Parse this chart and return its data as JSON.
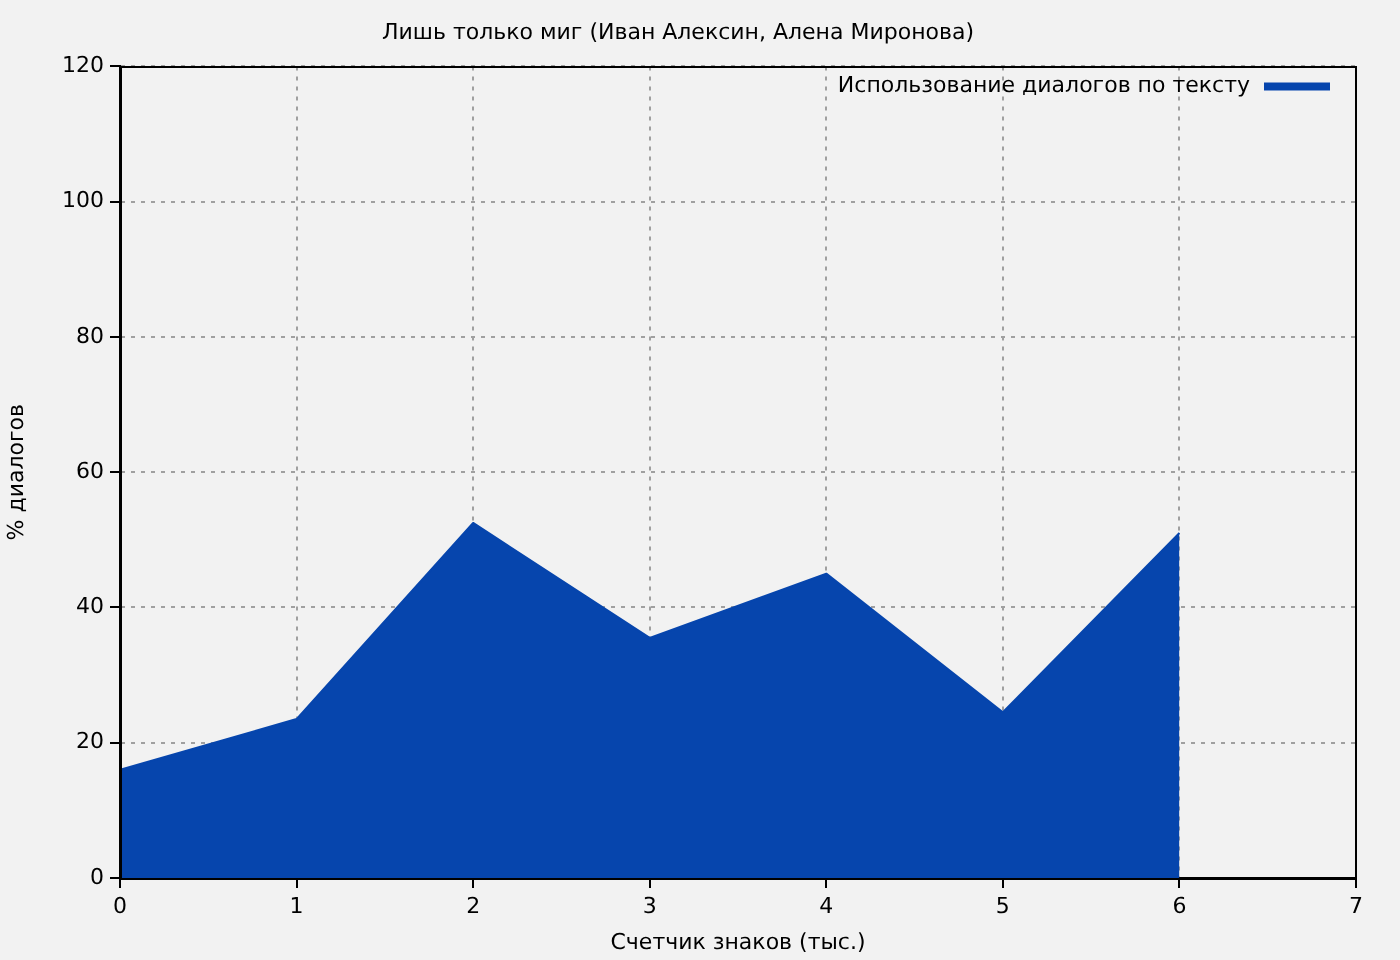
{
  "chart_data": {
    "type": "area",
    "title": "Лишь только миг (Иван Алексин, Алена Миронова)",
    "xlabel": "Счетчик знаков (тыс.)",
    "ylabel": "% диалогов",
    "x": [
      0,
      1,
      2,
      3,
      4,
      5,
      6
    ],
    "series": [
      {
        "name": "Использование диалогов по тексту",
        "color": "#0645ad",
        "values": [
          16,
          23.5,
          52.5,
          35.5,
          45,
          24.5,
          51
        ]
      }
    ],
    "xlim": [
      0,
      7
    ],
    "xticks": [
      0,
      1,
      2,
      3,
      4,
      5,
      6,
      7
    ],
    "ylim": [
      0,
      120
    ],
    "yticks": [
      0,
      20,
      40,
      60,
      80,
      100,
      120
    ],
    "grid": true,
    "legend": "top right"
  }
}
